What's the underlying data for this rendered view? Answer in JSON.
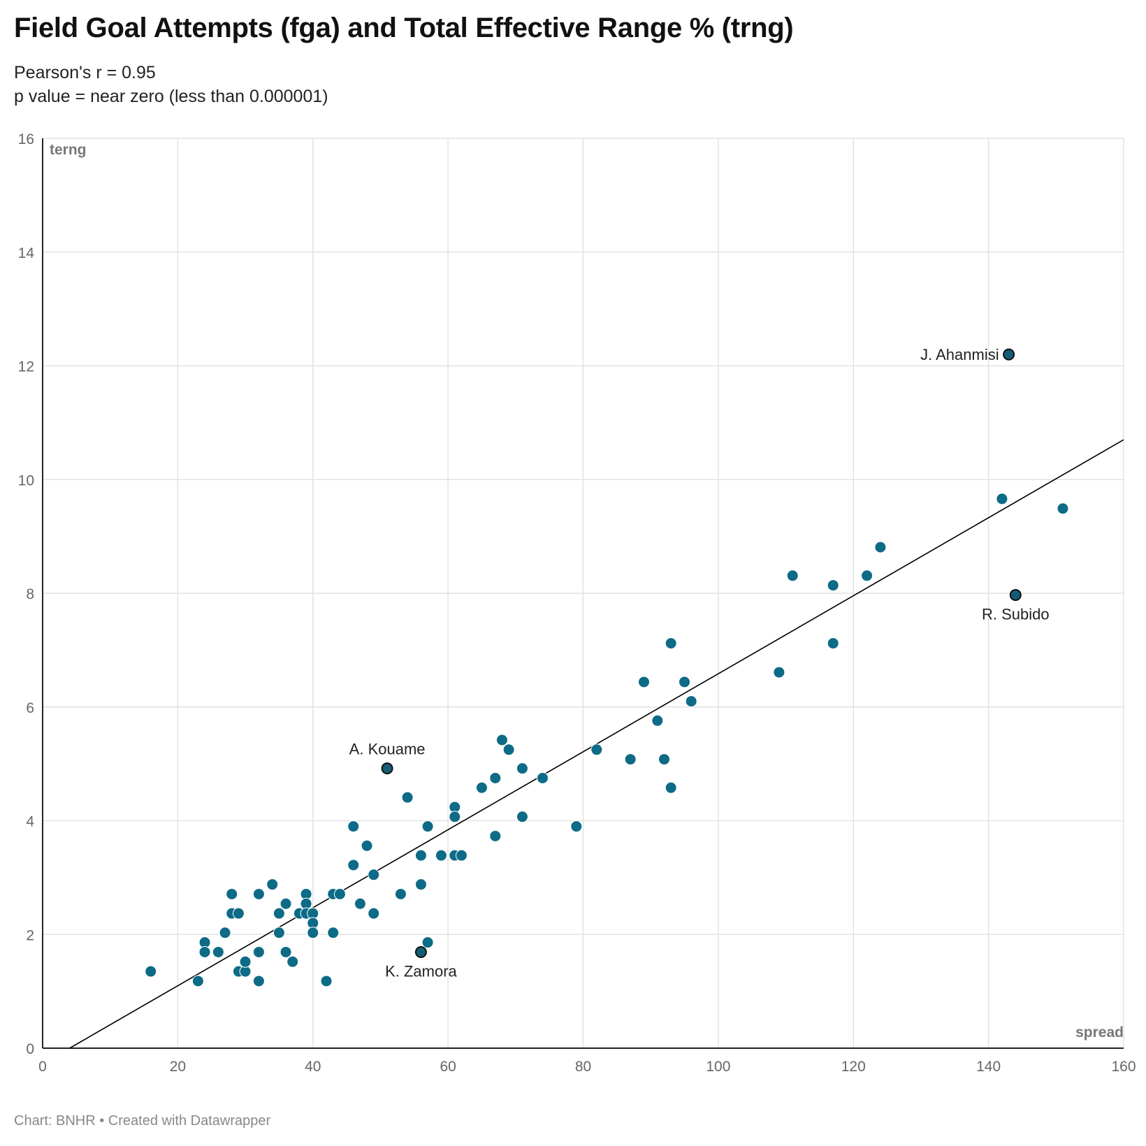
{
  "title": "Field Goal Attempts (fga) and Total Effective Range % (trng)",
  "subtitle_lines": [
    "Pearson's r = 0.95",
    "p value = near zero (less than 0.000001)"
  ],
  "footer": "Chart: BNHR • Created with Datawrapper",
  "colors": {
    "point": "#0d6b87",
    "highlight": "#145e75",
    "grid": "#e2e2e2",
    "axis": "#222222",
    "trend": "#000000"
  },
  "chart_data": {
    "type": "scatter",
    "xlabel": "spread",
    "ylabel": "terng",
    "xlim": [
      0,
      160
    ],
    "ylim": [
      0,
      16
    ],
    "xticks": [
      0,
      20,
      40,
      60,
      80,
      100,
      120,
      140,
      160
    ],
    "yticks": [
      0,
      2,
      4,
      6,
      8,
      10,
      12,
      14,
      16
    ],
    "grid": true,
    "trendline": {
      "x": [
        4,
        160
      ],
      "y": [
        0,
        10.7
      ]
    },
    "points": [
      {
        "x": 16,
        "y": 1.35
      },
      {
        "x": 23,
        "y": 1.18
      },
      {
        "x": 24,
        "y": 1.86
      },
      {
        "x": 24,
        "y": 1.69
      },
      {
        "x": 26,
        "y": 1.69
      },
      {
        "x": 27,
        "y": 2.03
      },
      {
        "x": 28,
        "y": 2.71
      },
      {
        "x": 28,
        "y": 2.37
      },
      {
        "x": 29,
        "y": 2.37
      },
      {
        "x": 29,
        "y": 1.35
      },
      {
        "x": 30,
        "y": 1.35
      },
      {
        "x": 30,
        "y": 1.52
      },
      {
        "x": 32,
        "y": 2.71
      },
      {
        "x": 32,
        "y": 1.69
      },
      {
        "x": 32,
        "y": 1.18
      },
      {
        "x": 34,
        "y": 2.88
      },
      {
        "x": 35,
        "y": 2.37
      },
      {
        "x": 35,
        "y": 2.03
      },
      {
        "x": 36,
        "y": 2.54
      },
      {
        "x": 36,
        "y": 1.69
      },
      {
        "x": 37,
        "y": 1.52
      },
      {
        "x": 38,
        "y": 2.37
      },
      {
        "x": 39,
        "y": 2.71
      },
      {
        "x": 39,
        "y": 2.54
      },
      {
        "x": 39,
        "y": 2.37
      },
      {
        "x": 40,
        "y": 2.37
      },
      {
        "x": 40,
        "y": 2.2
      },
      {
        "x": 40,
        "y": 2.03
      },
      {
        "x": 42,
        "y": 1.18
      },
      {
        "x": 43,
        "y": 2.71
      },
      {
        "x": 43,
        "y": 2.03
      },
      {
        "x": 44,
        "y": 2.71
      },
      {
        "x": 46,
        "y": 3.9
      },
      {
        "x": 46,
        "y": 3.22
      },
      {
        "x": 47,
        "y": 2.54
      },
      {
        "x": 48,
        "y": 3.56
      },
      {
        "x": 49,
        "y": 3.05
      },
      {
        "x": 49,
        "y": 2.37
      },
      {
        "x": 53,
        "y": 2.71
      },
      {
        "x": 54,
        "y": 4.41
      },
      {
        "x": 56,
        "y": 3.39
      },
      {
        "x": 56,
        "y": 2.88
      },
      {
        "x": 57,
        "y": 3.9
      },
      {
        "x": 57,
        "y": 1.86
      },
      {
        "x": 59,
        "y": 3.39
      },
      {
        "x": 61,
        "y": 4.24
      },
      {
        "x": 61,
        "y": 4.07
      },
      {
        "x": 61,
        "y": 3.39
      },
      {
        "x": 62,
        "y": 3.39
      },
      {
        "x": 65,
        "y": 4.58
      },
      {
        "x": 67,
        "y": 4.75
      },
      {
        "x": 67,
        "y": 3.73
      },
      {
        "x": 68,
        "y": 5.42
      },
      {
        "x": 69,
        "y": 5.25
      },
      {
        "x": 71,
        "y": 4.92
      },
      {
        "x": 71,
        "y": 4.07
      },
      {
        "x": 74,
        "y": 4.75
      },
      {
        "x": 79,
        "y": 3.9
      },
      {
        "x": 82,
        "y": 5.25
      },
      {
        "x": 87,
        "y": 5.08
      },
      {
        "x": 89,
        "y": 6.44
      },
      {
        "x": 91,
        "y": 5.76
      },
      {
        "x": 92,
        "y": 5.08
      },
      {
        "x": 93,
        "y": 7.12
      },
      {
        "x": 93,
        "y": 4.58
      },
      {
        "x": 95,
        "y": 6.44
      },
      {
        "x": 96,
        "y": 6.1
      },
      {
        "x": 109,
        "y": 6.61
      },
      {
        "x": 111,
        "y": 8.31
      },
      {
        "x": 117,
        "y": 8.14
      },
      {
        "x": 117,
        "y": 7.12
      },
      {
        "x": 122,
        "y": 8.31
      },
      {
        "x": 124,
        "y": 8.81
      },
      {
        "x": 142,
        "y": 9.66
      },
      {
        "x": 151,
        "y": 9.49
      }
    ],
    "highlighted": [
      {
        "label": "J. Ahanmisi",
        "x": 143,
        "y": 12.2,
        "label_pos": "left"
      },
      {
        "label": "R. Subido",
        "x": 144,
        "y": 7.97,
        "label_pos": "below"
      },
      {
        "label": "A. Kouame",
        "x": 51,
        "y": 4.92,
        "label_pos": "above"
      },
      {
        "label": "K. Zamora",
        "x": 56,
        "y": 1.69,
        "label_pos": "below"
      }
    ]
  }
}
